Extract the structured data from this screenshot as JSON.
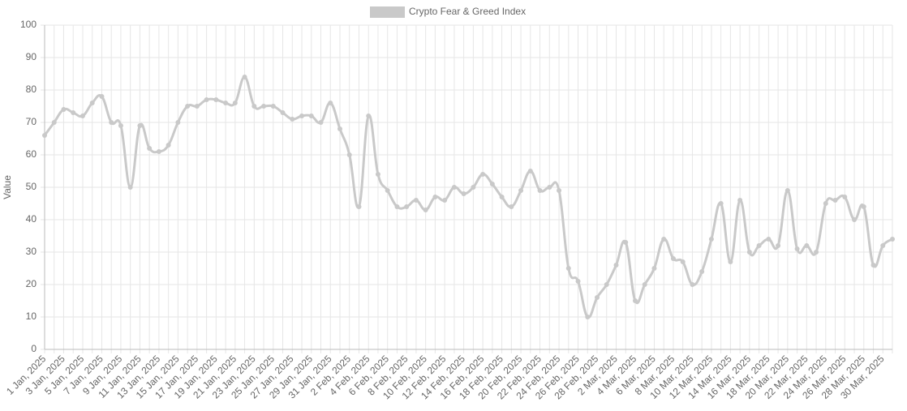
{
  "chart_data": {
    "type": "line",
    "y_label": "Value",
    "categories": [
      "1 Jan, 2025",
      null,
      "3 Jan, 2025",
      null,
      "5 Jan, 2025",
      null,
      "7 Jan, 2025",
      null,
      "9 Jan, 2025",
      null,
      "11 Jan, 2025",
      null,
      "13 Jan, 2025",
      null,
      "15 Jan, 2025",
      null,
      "17 Jan, 2025",
      null,
      "19 Jan, 2025",
      null,
      "21 Jan, 2025",
      null,
      "23 Jan, 2025",
      null,
      "25 Jan, 2025",
      null,
      "27 Jan, 2025",
      null,
      "29 Jan, 2025",
      null,
      "31 Jan, 2025",
      null,
      "2 Feb, 2025",
      null,
      "4 Feb, 2025",
      null,
      "6 Feb, 2025",
      null,
      "8 Feb, 2025",
      null,
      "10 Feb, 2025",
      null,
      "12 Feb, 2025",
      null,
      "14 Feb, 2025",
      null,
      "16 Feb, 2025",
      null,
      "18 Feb, 2025",
      null,
      "20 Feb, 2025",
      null,
      "22 Feb, 2025",
      null,
      "24 Feb, 2025",
      null,
      "26 Feb, 2025",
      null,
      "28 Feb, 2025",
      null,
      "2 Mar, 2025",
      null,
      "4 Mar, 2025",
      null,
      "6 Mar, 2025",
      null,
      "8 Mar, 2025",
      null,
      "10 Mar, 2025",
      null,
      "12 Mar, 2025",
      null,
      "14 Mar, 2025",
      null,
      "16 Mar, 2025",
      null,
      "18 Mar, 2025",
      null,
      "20 Mar, 2025",
      null,
      "22 Mar, 2025",
      null,
      "24 Mar, 2025",
      null,
      "26 Mar, 2025",
      null,
      "28 Mar, 2025",
      null,
      "30 Mar, 2025",
      null
    ],
    "series": [
      {
        "name": "Crypto Fear & Greed Index",
        "color": "#c9c9c9",
        "values": [
          66,
          70,
          74,
          73,
          72,
          76,
          78,
          70,
          69,
          50,
          69,
          62,
          61,
          63,
          70,
          75,
          75,
          77,
          77,
          76,
          76,
          84,
          75,
          75,
          75,
          73,
          71,
          72,
          72,
          70,
          76,
          68,
          60,
          44,
          72,
          54,
          49,
          44,
          44,
          46,
          43,
          47,
          46,
          50,
          48,
          50,
          54,
          51,
          47,
          44,
          49,
          55,
          49,
          50,
          49,
          25,
          21,
          10,
          16,
          20,
          26,
          33,
          15,
          20,
          25,
          34,
          28,
          27,
          20,
          24,
          34,
          45,
          27,
          46,
          30,
          32,
          34,
          32,
          49,
          31,
          32,
          30,
          45,
          46,
          47,
          40,
          44,
          26,
          32,
          34
        ]
      }
    ],
    "ylim": [
      0,
      100
    ],
    "yticks": [
      0,
      10,
      20,
      30,
      40,
      50,
      60,
      70,
      80,
      90,
      100
    ],
    "grid": true
  }
}
